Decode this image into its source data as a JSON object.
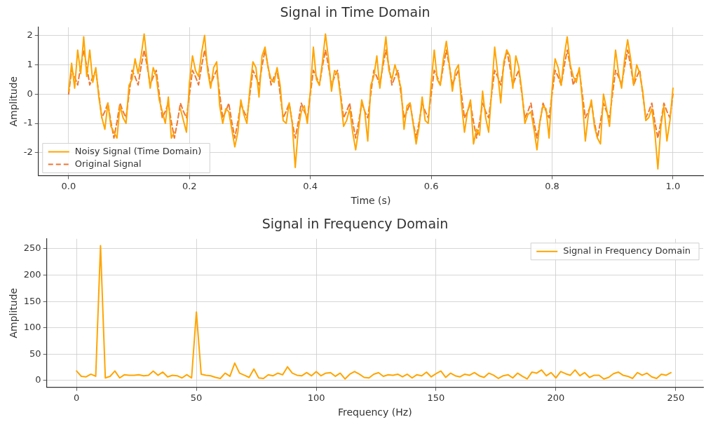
{
  "chart_data": [
    {
      "type": "line",
      "title": "Signal in Time Domain",
      "xlabel": "Time (s)",
      "ylabel": "Amplitude",
      "x": [
        0,
        0.005,
        0.01,
        0.015,
        0.02,
        0.025,
        0.03,
        0.035,
        0.04,
        0.045,
        0.05,
        0.055,
        0.06,
        0.065,
        0.07,
        0.075,
        0.08,
        0.085,
        0.09,
        0.095,
        0.1,
        0.105,
        0.11,
        0.115,
        0.12,
        0.125,
        0.13,
        0.135,
        0.14,
        0.145,
        0.15,
        0.155,
        0.16,
        0.165,
        0.17,
        0.175,
        0.18,
        0.185,
        0.19,
        0.195,
        0.2,
        0.205,
        0.21,
        0.215,
        0.22,
        0.225,
        0.23,
        0.235,
        0.24,
        0.245,
        0.25,
        0.255,
        0.26,
        0.265,
        0.27,
        0.275,
        0.28,
        0.285,
        0.29,
        0.295,
        0.3,
        0.305,
        0.31,
        0.315,
        0.32,
        0.325,
        0.33,
        0.335,
        0.34,
        0.345,
        0.35,
        0.355,
        0.36,
        0.365,
        0.37,
        0.375,
        0.38,
        0.385,
        0.39,
        0.395,
        0.4,
        0.405,
        0.41,
        0.415,
        0.42,
        0.425,
        0.43,
        0.435,
        0.44,
        0.445,
        0.45,
        0.455,
        0.46,
        0.465,
        0.47,
        0.475,
        0.48,
        0.485,
        0.49,
        0.495,
        0.5,
        0.505,
        0.51,
        0.515,
        0.52,
        0.525,
        0.53,
        0.535,
        0.54,
        0.545,
        0.55,
        0.555,
        0.56,
        0.565,
        0.57,
        0.575,
        0.58,
        0.585,
        0.59,
        0.595,
        0.6,
        0.605,
        0.61,
        0.615,
        0.62,
        0.625,
        0.63,
        0.635,
        0.64,
        0.645,
        0.65,
        0.655,
        0.66,
        0.665,
        0.67,
        0.675,
        0.68,
        0.685,
        0.69,
        0.695,
        0.7,
        0.705,
        0.71,
        0.715,
        0.72,
        0.725,
        0.73,
        0.735,
        0.74,
        0.745,
        0.75,
        0.755,
        0.76,
        0.765,
        0.77,
        0.775,
        0.78,
        0.785,
        0.79,
        0.795,
        0.8,
        0.805,
        0.81,
        0.815,
        0.82,
        0.825,
        0.83,
        0.835,
        0.84,
        0.845,
        0.85,
        0.855,
        0.86,
        0.865,
        0.87,
        0.875,
        0.88,
        0.885,
        0.89,
        0.895,
        0.9,
        0.905,
        0.91,
        0.915,
        0.92,
        0.925,
        0.93,
        0.935,
        0.94,
        0.945,
        0.95,
        0.955,
        0.96,
        0.965,
        0.97,
        0.975,
        0.98,
        0.985,
        0.99,
        0.995,
        1.0
      ],
      "series": [
        {
          "name": "Noisy Signal (Time Domain)",
          "color": "#ffa500",
          "line_style": "solid",
          "values": [
            0.1,
            1.05,
            0.2,
            1.5,
            0.7,
            1.95,
            0.6,
            1.5,
            0.4,
            0.9,
            -0.1,
            -0.8,
            -1.2,
            -0.3,
            -1.1,
            -1.3,
            -1.5,
            -0.4,
            -0.8,
            -1.0,
            0.3,
            0.5,
            1.2,
            0.7,
            1.3,
            2.05,
            1.1,
            0.2,
            0.9,
            0.6,
            -0.2,
            -0.6,
            -1.0,
            -0.1,
            -1.5,
            -1.3,
            null,
            -0.5,
            -0.9,
            -1.3,
            0.4,
            1.3,
            0.8,
            0.6,
            1.4,
            2.0,
            0.8,
            0.2,
            0.9,
            1.1,
            -0.4,
            -1.0,
            -0.5,
            -0.6,
            -1.2,
            -1.8,
            -1.3,
            -0.2,
            -0.7,
            -1.0,
            0.2,
            1.1,
            0.9,
            -0.1,
            1.3,
            1.6,
            0.9,
            0.5,
            0.4,
            0.9,
            0.3,
            -0.9,
            -1.0,
            -0.3,
            -1.0,
            -2.5,
            -1.2,
            -0.6,
            -0.4,
            -1.0,
            0.1,
            1.6,
            0.5,
            0.3,
            1.1,
            2.05,
            1.2,
            0.1,
            0.8,
            0.7,
            -0.1,
            -1.1,
            -0.9,
            -0.5,
            -1.3,
            -1.9,
            -1.2,
            -0.2,
            -0.6,
            -1.6,
            0.3,
            0.6,
            1.3,
            0.2,
            1.1,
            1.95,
            0.8,
            0.5,
            1.0,
            0.6,
            0.2,
            -1.2,
            -0.4,
            -0.3,
            -1.0,
            -1.7,
            -1.1,
            -0.1,
            -0.9,
            -1.0,
            0.4,
            1.5,
            0.5,
            0.3,
            1.2,
            1.8,
            1.0,
            0.1,
            0.8,
            1.0,
            -0.3,
            -1.3,
            -0.6,
            -0.2,
            -1.7,
            -1.2,
            -1.4,
            0.1,
            -0.8,
            -1.3,
            0.1,
            1.6,
            0.7,
            -0.3,
            1.1,
            1.5,
            1.3,
            0.2,
            1.3,
            0.9,
            0.1,
            -1.0,
            -0.7,
            -0.6,
            -1.2,
            -1.9,
            -0.9,
            -0.4,
            -0.5,
            -1.5,
            0.2,
            1.2,
            0.9,
            0.3,
            1.3,
            1.95,
            1.0,
            0.6,
            0.4,
            0.9,
            -0.2,
            -1.6,
            -0.7,
            -0.2,
            -1.1,
            -1.5,
            -1.7,
            0.0,
            -0.5,
            -1.1,
            0.3,
            1.5,
            0.7,
            0.2,
            1.2,
            1.85,
            1.2,
            0.3,
            1.0,
            0.7,
            0.1,
            -0.9,
            -0.8,
            -0.5,
            -1.3,
            -2.55,
            -1.1,
            -0.4,
            -1.6,
            -0.9,
            0.2
          ]
        },
        {
          "name": "Original Signal",
          "color": "#ee7733",
          "line_style": "dashed",
          "values": [
            0,
            0.81,
            0.59,
            0.31,
            0.95,
            1.5,
            0.95,
            0.31,
            0.59,
            0.81,
            0,
            -0.81,
            -0.59,
            -0.31,
            -0.95,
            -1.5,
            -0.95,
            -0.31,
            -0.59,
            -0.81,
            0,
            0.81,
            0.59,
            0.31,
            0.95,
            1.5,
            0.95,
            0.31,
            0.59,
            0.81,
            0,
            -0.81,
            -0.59,
            -0.31,
            -0.95,
            -1.5,
            -0.95,
            -0.31,
            -0.59,
            -0.81,
            0,
            0.81,
            0.59,
            0.31,
            0.95,
            1.5,
            0.95,
            0.31,
            0.59,
            0.81,
            0,
            -0.81,
            -0.59,
            -0.31,
            -0.95,
            -1.5,
            -0.95,
            -0.31,
            -0.59,
            -0.81,
            0,
            0.81,
            0.59,
            0.31,
            0.95,
            1.5,
            0.95,
            0.31,
            0.59,
            0.81,
            0,
            -0.81,
            -0.59,
            -0.31,
            -0.95,
            -1.5,
            -0.95,
            -0.31,
            -0.59,
            -0.81,
            0,
            0.81,
            0.59,
            0.31,
            0.95,
            1.5,
            0.95,
            0.31,
            0.59,
            0.81,
            0,
            -0.81,
            -0.59,
            -0.31,
            -0.95,
            -1.5,
            -0.95,
            -0.31,
            -0.59,
            -0.81,
            0,
            0.81,
            0.59,
            0.31,
            0.95,
            1.5,
            0.95,
            0.31,
            0.59,
            0.81,
            0,
            -0.81,
            -0.59,
            -0.31,
            -0.95,
            -1.5,
            -0.95,
            -0.31,
            -0.59,
            -0.81,
            0,
            0.81,
            0.59,
            0.31,
            0.95,
            1.5,
            0.95,
            0.31,
            0.59,
            0.81,
            0,
            -0.81,
            -0.59,
            -0.31,
            -0.95,
            -1.5,
            -0.95,
            -0.31,
            -0.59,
            -0.81,
            0,
            0.81,
            0.59,
            0.31,
            0.95,
            1.5,
            0.95,
            0.31,
            0.59,
            0.81,
            0,
            -0.81,
            -0.59,
            -0.31,
            -0.95,
            -1.5,
            -0.95,
            -0.31,
            -0.59,
            -0.81,
            0,
            0.81,
            0.59,
            0.31,
            0.95,
            1.5,
            0.95,
            0.31,
            0.59,
            0.81,
            0,
            -0.81,
            -0.59,
            -0.31,
            -0.95,
            -1.5,
            -0.95,
            -0.31,
            -0.59,
            -0.81,
            0,
            0.81,
            0.59,
            0.31,
            0.95,
            1.5,
            0.95,
            0.31,
            0.59,
            0.81,
            0,
            -0.81,
            -0.59,
            -0.31,
            -0.95,
            -1.5,
            -0.95,
            -0.31,
            -0.59,
            -0.81,
            0
          ]
        }
      ],
      "xlim": [
        -0.05,
        1.05
      ],
      "xticks": [
        {
          "value": 0,
          "label": "0.0"
        },
        0.2,
        0.4,
        0.6,
        0.8,
        {
          "value": 1,
          "label": "1.0"
        }
      ],
      "ylim": [
        -2.78,
        2.28
      ],
      "yticks": [
        -2,
        -1,
        0,
        1,
        2
      ],
      "grid": true,
      "legend": "bottom left",
      "marker": "none"
    },
    {
      "type": "line",
      "title": "Signal in Frequency Domain",
      "xlabel": "Frequency (Hz)",
      "ylabel": "Amplitude",
      "x": [
        0,
        2,
        4,
        6,
        8,
        10,
        12,
        14,
        16,
        18,
        20,
        22,
        24,
        26,
        28,
        30,
        32,
        34,
        36,
        38,
        40,
        42,
        44,
        46,
        48,
        50,
        52,
        54,
        56,
        58,
        60,
        62,
        64,
        66,
        68,
        70,
        72,
        74,
        76,
        78,
        80,
        82,
        84,
        86,
        88,
        90,
        92,
        94,
        96,
        98,
        100,
        102,
        104,
        106,
        108,
        110,
        112,
        114,
        116,
        118,
        120,
        122,
        124,
        126,
        128,
        130,
        132,
        134,
        136,
        138,
        140,
        142,
        144,
        146,
        148,
        150,
        152,
        154,
        156,
        158,
        160,
        162,
        164,
        166,
        168,
        170,
        172,
        174,
        176,
        178,
        180,
        182,
        184,
        186,
        188,
        190,
        192,
        194,
        196,
        198,
        200,
        202,
        204,
        206,
        208,
        210,
        212,
        214,
        216,
        218,
        220,
        222,
        224,
        226,
        228,
        230,
        232,
        234,
        236,
        238,
        240,
        242,
        244,
        246,
        248
      ],
      "series": [
        {
          "name": "Signal in Frequency Domain",
          "color": "#ffa500",
          "line_style": "solid",
          "values": [
            18,
            8,
            7,
            12,
            8,
            256,
            5,
            8,
            18,
            5,
            11,
            10,
            10,
            11,
            9,
            10,
            18,
            10,
            16,
            7,
            10,
            9,
            5,
            11,
            5,
            130,
            12,
            10,
            9,
            6,
            4,
            14,
            8,
            33,
            14,
            10,
            6,
            22,
            5,
            4,
            11,
            9,
            14,
            11,
            26,
            14,
            10,
            9,
            15,
            9,
            17,
            9,
            14,
            15,
            8,
            14,
            3,
            12,
            17,
            12,
            6,
            5,
            12,
            15,
            8,
            11,
            10,
            12,
            7,
            12,
            5,
            11,
            9,
            16,
            7,
            13,
            18,
            6,
            14,
            9,
            7,
            12,
            10,
            15,
            9,
            6,
            14,
            10,
            4,
            9,
            11,
            5,
            14,
            8,
            3,
            16,
            14,
            20,
            9,
            15,
            5,
            17,
            13,
            10,
            20,
            9,
            15,
            6,
            10,
            10,
            3,
            6,
            13,
            16,
            10,
            8,
            4,
            15,
            10,
            14,
            7,
            4,
            12,
            10,
            15
          ]
        }
      ],
      "xlim": [
        -12.45,
        261.45
      ],
      "xticks": [
        0,
        50,
        100,
        150,
        200,
        250
      ],
      "ylim": [
        -12.8,
        268.8
      ],
      "yticks": [
        0,
        50,
        100,
        150,
        200,
        250
      ],
      "grid": true,
      "legend": "top right",
      "marker": "none"
    }
  ]
}
